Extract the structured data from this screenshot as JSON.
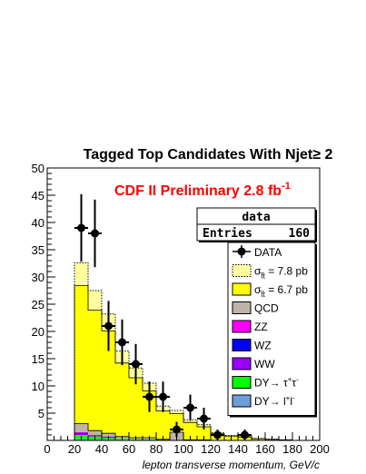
{
  "chart_data": {
    "type": "bar",
    "title": "Tagged Top Candidates With Njet≥ 2",
    "annotation": {
      "text": "CDF II Preliminary 2.8 fb",
      "sup": "-1"
    },
    "xlabel": "lepton transverse momentum, GeV/c",
    "ylabel": "",
    "xlim": [
      0,
      200
    ],
    "ylim": [
      0,
      50
    ],
    "xticks": [
      "0",
      "20",
      "40",
      "60",
      "80",
      "100",
      "120",
      "140",
      "160",
      "180",
      "200"
    ],
    "yticks": [
      "5",
      "10",
      "15",
      "20",
      "25",
      "30",
      "35",
      "40",
      "45",
      "50"
    ],
    "bin_edges": [
      20,
      30,
      40,
      50,
      60,
      70,
      80,
      90,
      100,
      110,
      120,
      130,
      140,
      150,
      160,
      170,
      180,
      190,
      200
    ],
    "stacks": {
      "DY_ll": [
        0.3,
        0.2,
        0.2,
        0.1,
        0.1,
        0.1,
        0,
        0,
        0,
        0,
        0,
        0,
        0,
        0,
        0,
        0,
        0,
        0
      ],
      "DY_tautau": [
        0.7,
        0.5,
        0.3,
        0.2,
        0.1,
        0.1,
        0,
        0,
        0,
        0,
        0,
        0,
        0,
        0,
        0,
        0,
        0,
        0
      ],
      "WW": [
        0.2,
        0.1,
        0.1,
        0,
        0,
        0,
        0,
        0,
        0,
        0,
        0,
        0,
        0,
        0,
        0,
        0,
        0,
        0
      ],
      "WZ": [
        0.2,
        0.1,
        0.1,
        0,
        0,
        0,
        0,
        0,
        0,
        0,
        0,
        0,
        0,
        0,
        0,
        0,
        0,
        0
      ],
      "ZZ": [
        0.1,
        0.1,
        0,
        0,
        0,
        0,
        0,
        0,
        0,
        0,
        0,
        0,
        0,
        0,
        0,
        0,
        0,
        0
      ],
      "QCD": [
        1.6,
        0.8,
        0.6,
        0.4,
        0.3,
        0.3,
        0.2,
        1.5,
        0.1,
        0.1,
        0,
        0,
        0,
        0,
        0,
        0,
        0,
        0
      ],
      "ttbar_6p7": [
        25.3,
        22.1,
        18.8,
        13.5,
        11.0,
        8.6,
        5.2,
        3.4,
        3.2,
        2.4,
        1.2,
        0.8,
        0.6,
        0.3,
        0.2,
        0.1,
        0,
        0
      ],
      "ttbar_7p8": [
        29.5,
        25.7,
        21.9,
        15.7,
        12.8,
        10.0,
        6.1,
        4.0,
        3.7,
        2.8,
        1.4,
        0.9,
        0.7,
        0.35,
        0.2,
        0.1,
        0,
        0
      ]
    },
    "data_points": {
      "x": [
        25,
        35,
        45,
        55,
        65,
        75,
        85,
        95,
        105,
        115,
        125,
        145
      ],
      "y": [
        39,
        38,
        21,
        18,
        14,
        8,
        8,
        2,
        6,
        4,
        1,
        1
      ],
      "yerr": [
        6.2,
        6.2,
        4.6,
        4.2,
        3.7,
        2.8,
        2.8,
        1.4,
        2.4,
        2.0,
        1.0,
        1.0
      ]
    },
    "stats_box": {
      "header": "data",
      "entries_label": "Entries",
      "entries_value": "160"
    },
    "legend": {
      "placement": "right",
      "entries": [
        {
          "key": "data",
          "label": "DATA",
          "style": "marker"
        },
        {
          "key": "ttbar_7p8",
          "label_main": "σ",
          "label_sub": "t̅t",
          "label_rest": " = 7.8 pb",
          "color": "#ffff9e",
          "style": "dotted"
        },
        {
          "key": "ttbar_6p7",
          "label_main": "σ",
          "label_sub": "t̅t",
          "label_rest": " = 6.7 pb",
          "color": "#ffff00",
          "style": "fill"
        },
        {
          "key": "QCD",
          "label": "QCD",
          "color": "#bfb3a8",
          "style": "fill"
        },
        {
          "key": "ZZ",
          "label": "ZZ",
          "color": "#ff00ff",
          "style": "fill"
        },
        {
          "key": "WZ",
          "label": "WZ",
          "color": "#0000ff",
          "style": "fill"
        },
        {
          "key": "WW",
          "label": "WW",
          "color": "#9900ff",
          "style": "fill"
        },
        {
          "key": "DY_tautau",
          "label_main": "DY→ τ",
          "label_sup1": "+",
          "label_mid": "τ",
          "label_sup2": "-",
          "color": "#00ff00",
          "style": "fill"
        },
        {
          "key": "DY_ll",
          "label_main": "DY→ l",
          "label_sup1": "+",
          "label_mid": "l",
          "label_sup2": "-",
          "color": "#6d9ed8",
          "style": "fill"
        }
      ]
    },
    "colors": {
      "DY_ll": "#6d9ed8",
      "DY_tautau": "#00ff00",
      "WW": "#9900ff",
      "WZ": "#0000ff",
      "ZZ": "#ff00ff",
      "QCD": "#bfb3a8",
      "ttbar_6p7": "#ffff00",
      "ttbar_7p8": "#ffff9e"
    }
  }
}
